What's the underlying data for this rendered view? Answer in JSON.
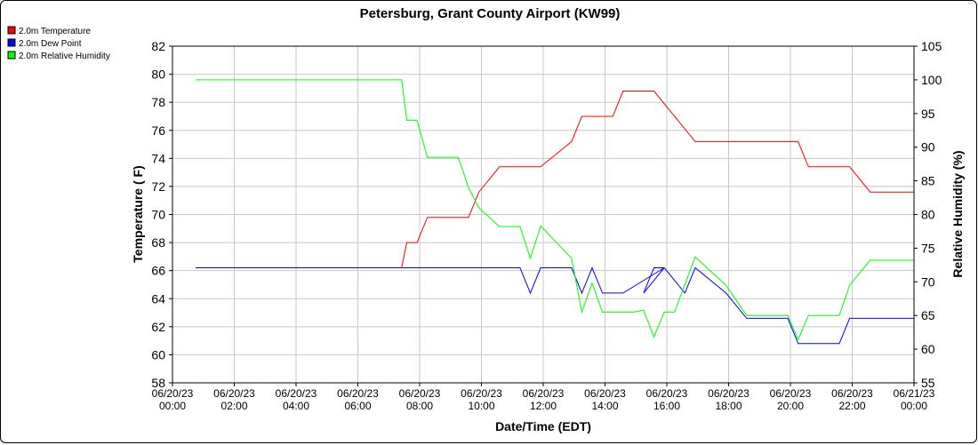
{
  "chart_data": {
    "type": "line",
    "title": "Petersburg, Grant County Airport (KW99)",
    "xlabel": "Date/Time (EDT)",
    "ylabel": "Temperature ( F)",
    "ylabel_right": "Relative Humidity (%)",
    "ylim": [
      58,
      82
    ],
    "y_ticks": [
      58,
      60,
      62,
      64,
      66,
      68,
      70,
      72,
      74,
      76,
      78,
      80,
      82
    ],
    "ylim_right": [
      55,
      105
    ],
    "y_ticks_right": [
      55,
      60,
      65,
      70,
      75,
      80,
      85,
      90,
      95,
      100,
      105
    ],
    "xlim": [
      "2023-06-20T00:00",
      "2023-06-21T00:00"
    ],
    "x_ticks": [
      {
        "date": "06/20/23",
        "time": "00:00"
      },
      {
        "date": "06/20/23",
        "time": "02:00"
      },
      {
        "date": "06/20/23",
        "time": "04:00"
      },
      {
        "date": "06/20/23",
        "time": "06:00"
      },
      {
        "date": "06/20/23",
        "time": "08:00"
      },
      {
        "date": "06/20/23",
        "time": "10:00"
      },
      {
        "date": "06/20/23",
        "time": "12:00"
      },
      {
        "date": "06/20/23",
        "time": "14:00"
      },
      {
        "date": "06/20/23",
        "time": "16:00"
      },
      {
        "date": "06/20/23",
        "time": "18:00"
      },
      {
        "date": "06/20/23",
        "time": "20:00"
      },
      {
        "date": "06/20/23",
        "time": "22:00"
      },
      {
        "date": "06/21/23",
        "time": "00:00"
      }
    ],
    "grid": true,
    "legend_position": "top-left",
    "series": [
      {
        "name": "2.0m Temperature",
        "color": "#ff0000",
        "axis": "left",
        "points": [
          [
            "00:45",
            66.2
          ],
          [
            "07:25",
            66.2
          ],
          [
            "07:35",
            68.0
          ],
          [
            "07:55",
            68.0
          ],
          [
            "08:15",
            69.8
          ],
          [
            "09:35",
            69.8
          ],
          [
            "09:55",
            71.6
          ],
          [
            "10:35",
            73.4
          ],
          [
            "11:55",
            73.4
          ],
          [
            "12:55",
            75.2
          ],
          [
            "13:15",
            77.0
          ],
          [
            "14:15",
            77.0
          ],
          [
            "14:35",
            78.8
          ],
          [
            "15:35",
            78.8
          ],
          [
            "16:55",
            75.2
          ],
          [
            "20:15",
            75.2
          ],
          [
            "20:35",
            73.4
          ],
          [
            "21:55",
            73.4
          ],
          [
            "22:35",
            71.6
          ],
          [
            "24:00",
            71.6
          ]
        ]
      },
      {
        "name": "2.0m Dew Point",
        "color": "#0000ff",
        "axis": "left",
        "points": [
          [
            "00:45",
            66.2
          ],
          [
            "11:15",
            66.2
          ],
          [
            "11:35",
            64.4
          ],
          [
            "11:55",
            66.2
          ],
          [
            "12:55",
            66.2
          ],
          [
            "13:15",
            64.4
          ],
          [
            "13:35",
            66.2
          ],
          [
            "13:55",
            64.4
          ],
          [
            "14:15",
            64.4
          ],
          [
            "14:35",
            64.4
          ],
          [
            "15:55",
            66.2
          ],
          [
            "15:15",
            64.4
          ],
          [
            "15:35",
            66.2
          ],
          [
            "15:55",
            66.2
          ],
          [
            "16:35",
            64.4
          ],
          [
            "16:55",
            66.2
          ],
          [
            "17:55",
            64.4
          ],
          [
            "18:35",
            62.6
          ],
          [
            "19:55",
            62.6
          ],
          [
            "20:15",
            60.8
          ],
          [
            "21:35",
            60.8
          ],
          [
            "21:55",
            62.6
          ],
          [
            "24:00",
            62.6
          ]
        ]
      },
      {
        "name": "2.0m Relative Humidity",
        "color": "#00ff00",
        "axis": "right",
        "points": [
          [
            "00:45",
            100.0
          ],
          [
            "07:25",
            100.0
          ],
          [
            "07:35",
            94.0
          ],
          [
            "07:55",
            94.0
          ],
          [
            "08:15",
            88.5
          ],
          [
            "09:15",
            88.5
          ],
          [
            "09:35",
            84.0
          ],
          [
            "09:55",
            81.0
          ],
          [
            "10:35",
            78.2
          ],
          [
            "11:15",
            78.2
          ],
          [
            "11:35",
            73.5
          ],
          [
            "11:55",
            78.3
          ],
          [
            "12:55",
            73.5
          ],
          [
            "13:15",
            65.5
          ],
          [
            "13:35",
            69.8
          ],
          [
            "13:55",
            65.5
          ],
          [
            "14:55",
            65.5
          ],
          [
            "15:15",
            65.8
          ],
          [
            "15:35",
            61.8
          ],
          [
            "15:55",
            65.5
          ],
          [
            "16:15",
            65.5
          ],
          [
            "16:55",
            73.7
          ],
          [
            "17:55",
            69.5
          ],
          [
            "18:35",
            65.0
          ],
          [
            "19:55",
            65.0
          ],
          [
            "20:15",
            61.4
          ],
          [
            "20:35",
            65.0
          ],
          [
            "21:35",
            65.0
          ],
          [
            "21:55",
            69.5
          ],
          [
            "22:35",
            73.2
          ],
          [
            "24:00",
            73.2
          ]
        ]
      }
    ]
  }
}
